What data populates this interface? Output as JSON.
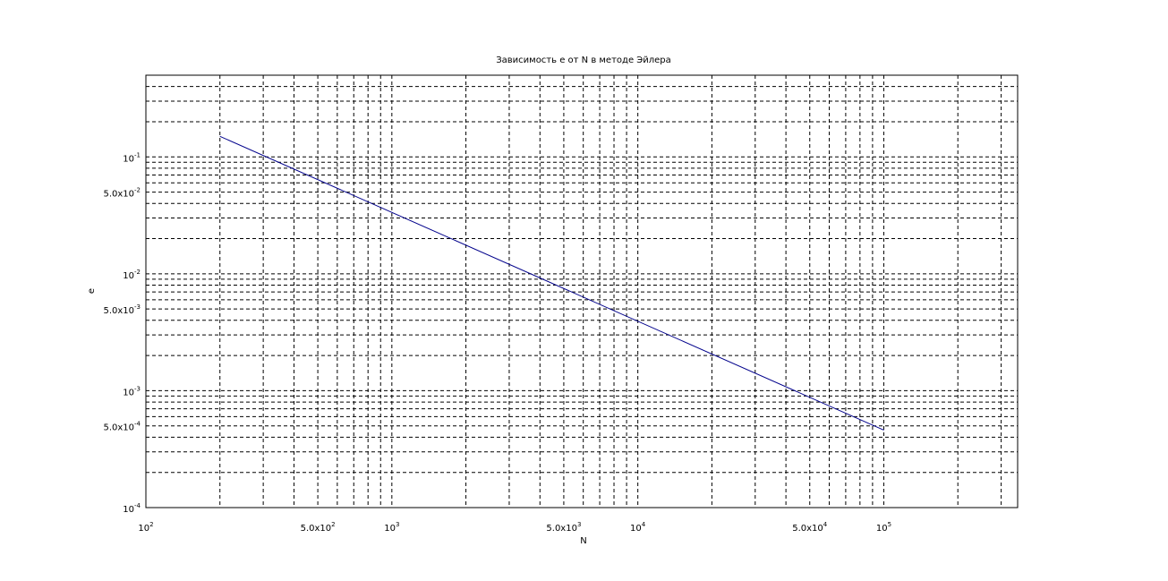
{
  "chart_data": {
    "type": "line",
    "title": "Зависимость e от N в методе Эйлера",
    "xlabel": "N",
    "ylabel": "e",
    "x_scale": "log",
    "y_scale": "log",
    "xlim": [
      100,
      350000
    ],
    "ylim": [
      0.0001,
      0.5
    ],
    "grid": true,
    "x_ticks": [
      {
        "value": 100,
        "mantissa": "10",
        "exp": "2"
      },
      {
        "value": 500,
        "mantissa": "5.0x10",
        "exp": "2"
      },
      {
        "value": 1000,
        "mantissa": "10",
        "exp": "3"
      },
      {
        "value": 5000,
        "mantissa": "5.0x10",
        "exp": "3"
      },
      {
        "value": 10000,
        "mantissa": "10",
        "exp": "4"
      },
      {
        "value": 50000,
        "mantissa": "5.0x10",
        "exp": "4"
      },
      {
        "value": 100000,
        "mantissa": "10",
        "exp": "5"
      }
    ],
    "y_ticks": [
      {
        "value": 0.0001,
        "mantissa": "10",
        "exp": "-4"
      },
      {
        "value": 0.0005,
        "mantissa": "5.0x10",
        "exp": "-4"
      },
      {
        "value": 0.001,
        "mantissa": "10",
        "exp": "-3"
      },
      {
        "value": 0.005,
        "mantissa": "5.0x10",
        "exp": "-3"
      },
      {
        "value": 0.01,
        "mantissa": "10",
        "exp": "-2"
      },
      {
        "value": 0.05,
        "mantissa": "5.0x10",
        "exp": "-2"
      },
      {
        "value": 0.1,
        "mantissa": "10",
        "exp": "-1"
      }
    ],
    "series": [
      {
        "color": "#00008b",
        "x": [
          200,
          100000
        ],
        "y": [
          0.15,
          0.00046
        ]
      }
    ]
  }
}
